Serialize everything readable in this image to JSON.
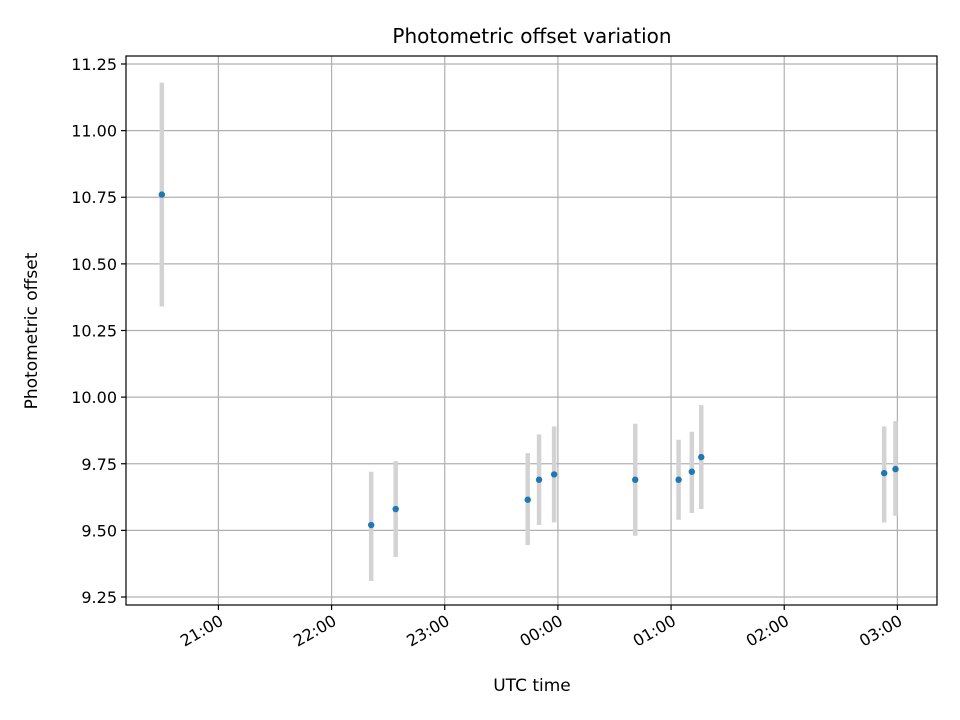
{
  "chart_data": {
    "type": "scatter",
    "title": "Photometric offset variation",
    "xlabel": "UTC time",
    "ylabel": "Photometric offset",
    "x_axis_type": "time",
    "xlim": [
      "20:11",
      "03:21"
    ],
    "ylim": [
      9.22,
      11.28
    ],
    "x_ticks": [
      "21:00",
      "22:00",
      "23:00",
      "00:00",
      "01:00",
      "02:00",
      "03:00"
    ],
    "y_ticks": [
      "9.25",
      "9.50",
      "9.75",
      "10.00",
      "10.25",
      "10.50",
      "10.75",
      "11.00",
      "11.25"
    ],
    "grid": true,
    "point_color": "#1f77b4",
    "errorbar_color": "#d3d3d3",
    "series": [
      {
        "points": [
          {
            "x": "20:30",
            "y": 10.76,
            "yerr_low": 10.34,
            "yerr_high": 11.18
          },
          {
            "x": "22:21",
            "y": 9.52,
            "yerr_low": 9.31,
            "yerr_high": 9.72
          },
          {
            "x": "22:34",
            "y": 9.58,
            "yerr_low": 9.4,
            "yerr_high": 9.76
          },
          {
            "x": "23:44",
            "y": 9.615,
            "yerr_low": 9.445,
            "yerr_high": 9.79
          },
          {
            "x": "23:50",
            "y": 9.69,
            "yerr_low": 9.52,
            "yerr_high": 9.86
          },
          {
            "x": "23:58",
            "y": 9.71,
            "yerr_low": 9.53,
            "yerr_high": 9.89
          },
          {
            "x": "00:41",
            "y": 9.69,
            "yerr_low": 9.48,
            "yerr_high": 9.9
          },
          {
            "x": "01:04",
            "y": 9.69,
            "yerr_low": 9.54,
            "yerr_high": 9.84
          },
          {
            "x": "01:11",
            "y": 9.72,
            "yerr_low": 9.565,
            "yerr_high": 9.87
          },
          {
            "x": "01:16",
            "y": 9.775,
            "yerr_low": 9.58,
            "yerr_high": 9.97
          },
          {
            "x": "02:53",
            "y": 9.715,
            "yerr_low": 9.53,
            "yerr_high": 9.89
          },
          {
            "x": "02:59",
            "y": 9.73,
            "yerr_low": 9.555,
            "yerr_high": 9.91
          }
        ]
      }
    ]
  }
}
